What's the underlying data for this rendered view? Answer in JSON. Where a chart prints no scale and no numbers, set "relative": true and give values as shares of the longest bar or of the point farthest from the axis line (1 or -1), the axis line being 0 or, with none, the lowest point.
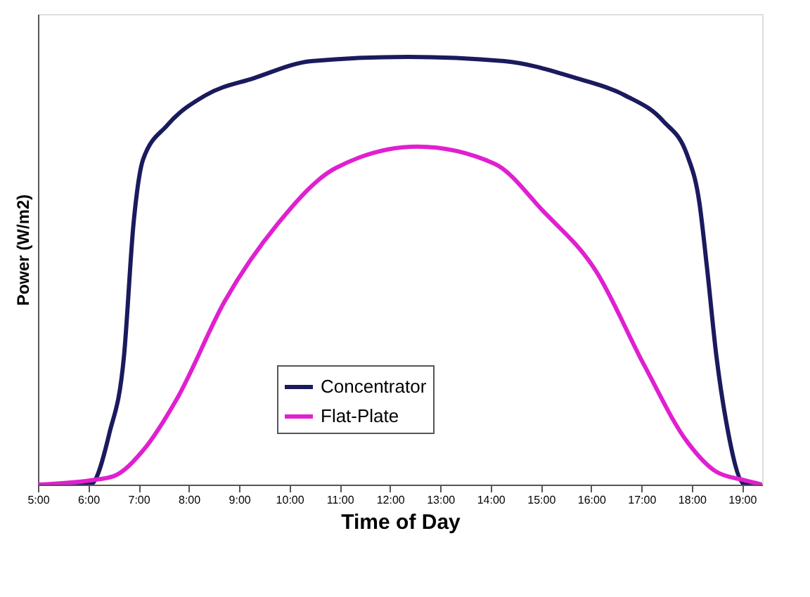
{
  "chart_data": {
    "type": "line",
    "relative": true,
    "xlabel": "Time of Day",
    "ylabel": "Power (W/m2)",
    "xlim": [
      5,
      19.4
    ],
    "xticks": [
      {
        "value": 5,
        "label": "5:00"
      },
      {
        "value": 6,
        "label": "6:00"
      },
      {
        "value": 7,
        "label": "7:00"
      },
      {
        "value": 8,
        "label": "8:00"
      },
      {
        "value": 9,
        "label": "9:00"
      },
      {
        "value": 10,
        "label": "10:00"
      },
      {
        "value": 11,
        "label": "11:00"
      },
      {
        "value": 12,
        "label": "12:00"
      },
      {
        "value": 13,
        "label": "13:00"
      },
      {
        "value": 14,
        "label": "14:00"
      },
      {
        "value": 15,
        "label": "15:00"
      },
      {
        "value": 16,
        "label": "16:00"
      },
      {
        "value": 17,
        "label": "17:00"
      },
      {
        "value": 18,
        "label": "18:00"
      },
      {
        "value": 19,
        "label": "19:00"
      }
    ],
    "grid": false,
    "legend": "bottom",
    "marker": "none",
    "line_style": "solid",
    "series": [
      {
        "name": "Concentrator",
        "color": "#1a1a5e",
        "x": [
          5.0,
          6.04,
          6.42,
          6.71,
          6.9,
          7.09,
          7.57,
          8.33,
          9.29,
          10.44,
          12.36,
          14.27,
          15.71,
          16.67,
          17.43,
          17.91,
          18.15,
          18.3,
          18.49,
          18.68,
          19.06,
          19.4
        ],
        "values": [
          0,
          0,
          0.12,
          0.3,
          0.61,
          0.76,
          0.84,
          0.91,
          0.95,
          0.99,
          1.0,
          0.99,
          0.95,
          0.91,
          0.85,
          0.77,
          0.66,
          0.51,
          0.3,
          0.15,
          0,
          0
        ]
      },
      {
        "name": "Flat-Plate",
        "color": "#e020d0",
        "x": [
          5.0,
          6.04,
          6.51,
          7.09,
          7.76,
          8.72,
          9.77,
          10.92,
          12.55,
          14.08,
          15.04,
          16.09,
          17.05,
          17.91,
          18.49,
          19.06,
          19.4
        ],
        "values": [
          0,
          0.01,
          0.02,
          0.08,
          0.2,
          0.43,
          0.61,
          0.74,
          0.79,
          0.75,
          0.64,
          0.5,
          0.28,
          0.1,
          0.03,
          0.01,
          0
        ]
      }
    ]
  }
}
